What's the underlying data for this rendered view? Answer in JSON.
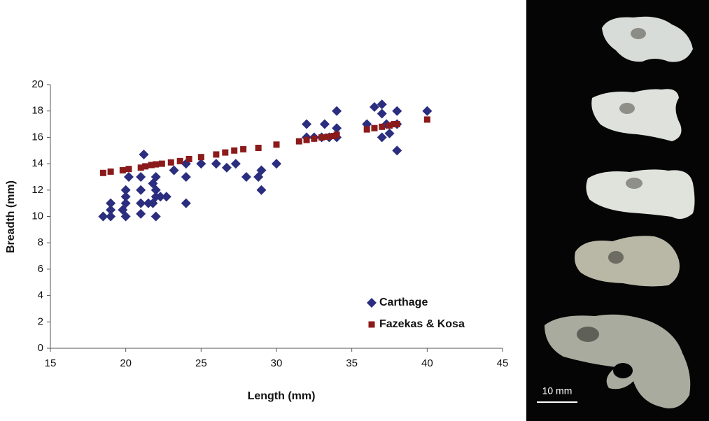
{
  "chart_data": {
    "type": "scatter",
    "xlabel": "Length (mm)",
    "ylabel": "Breadth (mm)",
    "xlim": [
      15,
      45
    ],
    "xticks": [
      15,
      20,
      25,
      30,
      35,
      40,
      45
    ],
    "ylim": [
      0,
      20
    ],
    "yticks": [
      0,
      2,
      4,
      6,
      8,
      10,
      12,
      14,
      16,
      18,
      20
    ],
    "grid": false,
    "legend": "lower right",
    "series": [
      {
        "name": "Carthage",
        "color": "#2b2d7f",
        "marker": "diamond",
        "x": [
          18.5,
          19,
          19,
          19,
          19.8,
          20,
          20,
          20,
          20,
          20.2,
          21,
          21,
          21,
          21,
          21.2,
          21.5,
          21.8,
          21.8,
          22,
          22,
          22,
          22,
          22.3,
          22.7,
          23.2,
          24,
          24,
          24,
          25,
          26,
          26.7,
          27.3,
          28,
          28.8,
          29,
          29,
          30,
          32,
          32,
          32.5,
          33,
          33.2,
          33.5,
          34,
          34,
          34,
          36,
          36.5,
          37,
          37,
          37,
          37.3,
          37.5,
          38,
          38,
          38,
          40
        ],
        "values": [
          10,
          10,
          10.5,
          11,
          10.5,
          10,
          11,
          11.5,
          12,
          13,
          10.2,
          11,
          12,
          13,
          14.7,
          11,
          11,
          12.5,
          10,
          11.5,
          12,
          13,
          11.5,
          11.5,
          13.5,
          14,
          13,
          11,
          14,
          14,
          13.7,
          14,
          13,
          13,
          13.5,
          12,
          14,
          17,
          16,
          16,
          16,
          17,
          16,
          18,
          16.7,
          16,
          17,
          18.3,
          18.5,
          17.8,
          16,
          17,
          16.3,
          18,
          17,
          15,
          18
        ]
      },
      {
        "name": "Fazekas & Kosa",
        "color": "#8b1a1a",
        "marker": "square",
        "x": [
          18.5,
          19,
          19.8,
          20.2,
          21,
          21.3,
          21.7,
          22,
          22.4,
          23,
          23.6,
          24.2,
          25,
          26,
          26.6,
          27.2,
          27.8,
          28.8,
          30,
          31.5,
          32,
          32.5,
          33,
          33.4,
          33.8,
          34,
          36,
          36.5,
          37,
          37.5,
          37.8,
          38,
          40
        ],
        "values": [
          13.3,
          13.4,
          13.5,
          13.6,
          13.7,
          13.8,
          13.9,
          13.95,
          14,
          14.1,
          14.2,
          14.35,
          14.5,
          14.7,
          14.85,
          15,
          15.1,
          15.2,
          15.45,
          15.7,
          15.8,
          15.9,
          16,
          16.05,
          16.1,
          16.2,
          16.6,
          16.7,
          16.8,
          16.9,
          17,
          17,
          17.35
        ]
      }
    ]
  },
  "photo": {
    "scale_label": "10 mm"
  }
}
